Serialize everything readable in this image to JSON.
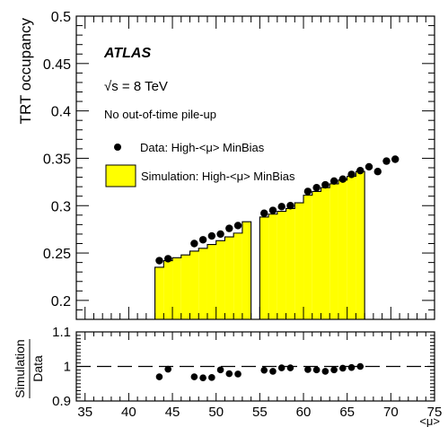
{
  "chart_data": {
    "type": "bar",
    "x_axis": {
      "label": "<μ>",
      "range": [
        34,
        75
      ],
      "major_ticks": [
        35,
        40,
        45,
        50,
        55,
        60,
        65,
        70,
        75
      ],
      "minor_step": 1
    },
    "top_panel": {
      "ylabel": "TRT occupancy",
      "ylim": [
        0.18,
        0.5
      ],
      "y_major_ticks": [
        0.2,
        0.25,
        0.3,
        0.35,
        0.4,
        0.45,
        0.5
      ],
      "y_tick_labels": [
        "0.2",
        "0.25",
        "0.3",
        "0.35",
        "0.4",
        "0.45",
        "0.5"
      ],
      "annotations": {
        "experiment": "ATLAS",
        "energy": "√s = 8 TeV",
        "note": "No out-of-time pile-up"
      },
      "legend": {
        "placement": "top-left",
        "data_label": "Data: High-<μ> MinBias",
        "sim_label": "Simulation: High-<μ> MinBias"
      },
      "series": [
        {
          "name": "Simulation: High-<μ> MinBias",
          "kind": "histogram",
          "fill": "#ffff00",
          "segments": [
            {
              "edges": [
                43,
                44,
                45,
                46,
                47,
                48,
                49,
                50,
                51,
                52,
                53,
                54
              ],
              "values": [
                0.235,
                0.242,
                0.245,
                0.248,
                0.252,
                0.255,
                0.259,
                0.263,
                0.267,
                0.271,
                0.283
              ]
            },
            {
              "edges": [
                55,
                56,
                57,
                58,
                59,
                60,
                61,
                62,
                63,
                64,
                65,
                66,
                67
              ],
              "values": [
                0.288,
                0.291,
                0.294,
                0.297,
                0.303,
                0.311,
                0.315,
                0.319,
                0.323,
                0.327,
                0.331,
                0.336
              ]
            }
          ]
        },
        {
          "name": "Data: High-<μ> MinBias",
          "kind": "markers",
          "color": "#000000",
          "points": [
            [
              43.5,
              0.242
            ],
            [
              44.5,
              0.244
            ],
            [
              47.5,
              0.26
            ],
            [
              48.5,
              0.264
            ],
            [
              49.5,
              0.268
            ],
            [
              50.5,
              0.27
            ],
            [
              51.5,
              0.276
            ],
            [
              52.5,
              0.279
            ],
            [
              55.5,
              0.292
            ],
            [
              56.5,
              0.295
            ],
            [
              57.5,
              0.299
            ],
            [
              58.5,
              0.3
            ],
            [
              60.5,
              0.315
            ],
            [
              61.5,
              0.319
            ],
            [
              62.5,
              0.322
            ],
            [
              63.5,
              0.326
            ],
            [
              64.5,
              0.328
            ],
            [
              65.5,
              0.333
            ],
            [
              66.5,
              0.337
            ],
            [
              67.5,
              0.341
            ],
            [
              68.5,
              0.336
            ],
            [
              69.5,
              0.347
            ],
            [
              70.5,
              0.349
            ]
          ]
        }
      ]
    },
    "ratio_panel": {
      "ylabel_numerator": "Simulation",
      "ylabel_denominator": "Data",
      "ylim": [
        0.9,
        1.1
      ],
      "y_major_ticks": [
        0.9,
        1.0,
        1.1
      ],
      "y_tick_labels": [
        "0.9",
        "1",
        "1.1"
      ],
      "reference_line": 1.0,
      "points": [
        [
          43.5,
          0.97
        ],
        [
          44.5,
          0.992
        ],
        [
          47.5,
          0.97
        ],
        [
          48.5,
          0.967
        ],
        [
          49.5,
          0.968
        ],
        [
          50.5,
          0.99
        ],
        [
          51.5,
          0.979
        ],
        [
          52.5,
          0.978
        ],
        [
          55.5,
          0.989
        ],
        [
          56.5,
          0.986
        ],
        [
          57.5,
          0.996
        ],
        [
          58.5,
          0.996
        ],
        [
          60.5,
          0.991
        ],
        [
          61.5,
          0.99
        ],
        [
          62.5,
          0.986
        ],
        [
          63.5,
          0.99
        ],
        [
          64.5,
          0.995
        ],
        [
          65.5,
          0.997
        ],
        [
          66.5,
          1.0
        ]
      ]
    }
  }
}
